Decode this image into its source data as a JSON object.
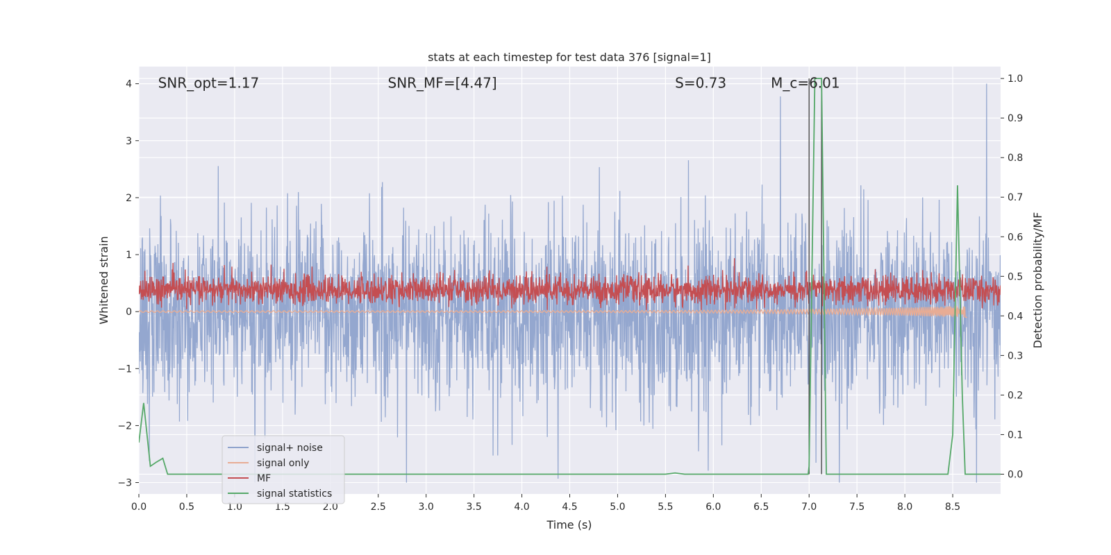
{
  "chart_data": {
    "type": "line",
    "title": "stats at each timestep for test data 376 [signal=1]",
    "xlabel": "Time (s)",
    "ylabel": "Whitened strain",
    "y2label": "Detection probability/MF",
    "xlim": [
      0.0,
      9.0
    ],
    "ylim": [
      -3.2,
      4.3
    ],
    "y2lim": [
      -0.05,
      1.03
    ],
    "x_ticks": [
      0.0,
      0.5,
      1.0,
      1.5,
      2.0,
      2.5,
      3.0,
      3.5,
      4.0,
      4.5,
      5.0,
      5.5,
      6.0,
      6.5,
      7.0,
      7.5,
      8.0,
      8.5
    ],
    "x_tick_labels": [
      "0.0",
      "0.5",
      "1.0",
      "1.5",
      "2.0",
      "2.5",
      "3.0",
      "3.5",
      "4.0",
      "4.5",
      "5.0",
      "5.5",
      "6.0",
      "6.5",
      "7.0",
      "7.5",
      "8.0",
      "8.5"
    ],
    "y_ticks": [
      -3,
      -2,
      -1,
      0,
      1,
      2,
      3,
      4
    ],
    "y_tick_labels": [
      "−3",
      "−2",
      "−1",
      "0",
      "1",
      "2",
      "3",
      "4"
    ],
    "y2_ticks": [
      0.0,
      0.1,
      0.2,
      0.3,
      0.4,
      0.5,
      0.6,
      0.7,
      0.8,
      0.9,
      1.0
    ],
    "y2_tick_labels": [
      "0.0",
      "0.1",
      "0.2",
      "0.3",
      "0.4",
      "0.5",
      "0.6",
      "0.7",
      "0.8",
      "0.9",
      "1.0"
    ],
    "grid": true,
    "legend_position": "bottom-left",
    "annotations": [
      {
        "id": "snr-opt",
        "text": "SNR_opt=1.17",
        "x": 0.2,
        "y": 4.0
      },
      {
        "id": "snr-mf",
        "text": "SNR_MF=[4.47]",
        "x": 2.6,
        "y": 4.0
      },
      {
        "id": "s-value",
        "text": "S=0.73",
        "x": 5.6,
        "y": 4.0
      },
      {
        "id": "mc-value",
        "text": "M_c=6.01",
        "x": 6.6,
        "y": 4.0
      }
    ],
    "vlines": [
      7.0,
      7.13
    ],
    "series": [
      {
        "name": "signal+ noise",
        "color": "#8fa3cc",
        "axis": "left",
        "kind": "noise",
        "y_range": [
          -3.0,
          4.0
        ],
        "typical_band": [
          -1.2,
          1.5
        ]
      },
      {
        "name": "signal only",
        "color": "#e8ac94",
        "axis": "left",
        "kind": "chirp",
        "x_range": [
          0.0,
          8.65
        ],
        "y_level": 0.0
      },
      {
        "name": "MF",
        "color": "#c44e52",
        "axis": "right",
        "kind": "noise",
        "y2_range": [
          0.4,
          0.57
        ],
        "typical_band": [
          0.43,
          0.5
        ]
      },
      {
        "name": "signal statistics",
        "color": "#55a868",
        "axis": "right",
        "x": [
          0.0,
          0.05,
          0.12,
          0.18,
          0.25,
          0.3,
          5.5,
          5.6,
          5.7,
          6.99,
          7.0,
          7.06,
          7.13,
          7.18,
          8.45,
          8.5,
          8.55,
          8.6,
          8.63,
          9.0
        ],
        "y": [
          0.08,
          0.18,
          0.02,
          0.03,
          0.04,
          0.0,
          0.0,
          0.003,
          0.0,
          0.0,
          0.02,
          1.0,
          1.0,
          0.0,
          0.0,
          0.1,
          0.73,
          0.2,
          0.0,
          0.0
        ]
      }
    ]
  }
}
